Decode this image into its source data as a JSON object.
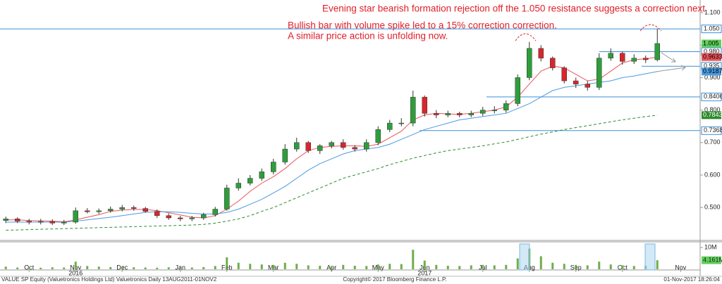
{
  "chart_data": {
    "type": "candlestick",
    "annotations": [
      "Evening star bearish formation rejection off the 1.050 resistance suggests a correction next",
      "Bullish bar with volume spike led to a 15% correction correction.",
      "A similar price action is unfolding now."
    ],
    "categories": [
      null,
      null,
      "Oct",
      null,
      null,
      null,
      "Nov",
      null,
      null,
      null,
      "Dec",
      null,
      null,
      null,
      null,
      "Jan",
      null,
      null,
      null,
      "Feb",
      null,
      null,
      null,
      "Mar",
      null,
      null,
      null,
      null,
      "Apr",
      null,
      null,
      null,
      "May",
      null,
      null,
      null,
      "Jun",
      null,
      null,
      null,
      null,
      "Jul",
      null,
      null,
      null,
      "Aug",
      null,
      null,
      null,
      "Sep",
      null,
      null,
      null,
      "Oct",
      null,
      null,
      null,
      null,
      "Nov",
      null
    ],
    "category_years": [
      null,
      null,
      null,
      null,
      null,
      null,
      "2016",
      null,
      null,
      null,
      null,
      null,
      null,
      null,
      null,
      null,
      null,
      null,
      null,
      null,
      null,
      null,
      null,
      null,
      null,
      null,
      null,
      null,
      null,
      null,
      null,
      null,
      null,
      null,
      null,
      null,
      "2017",
      null,
      null,
      null,
      null,
      null,
      null,
      null,
      null,
      null,
      null,
      null,
      null,
      null,
      null,
      null,
      null,
      null,
      null,
      null,
      null,
      null,
      null,
      null
    ],
    "open": [
      0.46,
      0.465,
      0.458,
      0.455,
      0.457,
      0.452,
      0.455,
      0.49,
      0.487,
      0.49,
      0.495,
      0.5,
      0.497,
      0.488,
      0.475,
      0.468,
      0.465,
      0.468,
      0.478,
      0.495,
      0.56,
      0.575,
      0.59,
      0.61,
      0.64,
      0.68,
      0.7,
      0.675,
      0.69,
      0.7,
      0.685,
      0.68,
      0.7,
      0.74,
      0.76,
      0.76,
      0.84,
      0.79,
      0.785,
      0.79,
      0.785,
      0.79,
      0.8,
      0.8,
      0.82,
      0.9,
      0.99,
      0.96,
      0.93,
      0.89,
      0.88,
      0.87,
      0.96,
      0.975,
      0.95,
      0.96,
      0.955,
      null,
      null,
      null
    ],
    "high": [
      0.472,
      0.47,
      0.465,
      0.465,
      0.464,
      0.462,
      0.5,
      0.498,
      0.497,
      0.503,
      0.508,
      0.506,
      0.502,
      0.494,
      0.482,
      0.474,
      0.474,
      0.484,
      0.502,
      0.57,
      0.59,
      0.6,
      0.62,
      0.65,
      0.695,
      0.715,
      0.705,
      0.695,
      0.705,
      0.71,
      0.692,
      0.71,
      0.75,
      0.77,
      0.775,
      0.86,
      0.845,
      0.8,
      0.798,
      0.795,
      0.798,
      0.81,
      0.812,
      0.83,
      0.91,
      1.01,
      1.0,
      0.965,
      0.935,
      0.9,
      0.89,
      0.975,
      0.99,
      0.98,
      0.972,
      0.968,
      1.05,
      null,
      null,
      null
    ],
    "low": [
      0.452,
      0.452,
      0.448,
      0.448,
      0.446,
      0.446,
      0.45,
      0.482,
      0.48,
      0.484,
      0.488,
      0.49,
      0.484,
      0.468,
      0.462,
      0.458,
      0.458,
      0.462,
      0.472,
      0.49,
      0.552,
      0.568,
      0.582,
      0.602,
      0.632,
      0.672,
      0.668,
      0.665,
      0.682,
      0.678,
      0.672,
      0.672,
      0.692,
      0.732,
      0.75,
      0.75,
      0.78,
      0.775,
      0.778,
      0.778,
      0.778,
      0.782,
      0.79,
      0.792,
      0.812,
      0.892,
      0.95,
      0.922,
      0.882,
      0.868,
      0.86,
      0.862,
      0.952,
      0.94,
      0.942,
      0.945,
      0.95,
      null,
      null,
      null
    ],
    "close": [
      0.465,
      0.458,
      0.455,
      0.457,
      0.452,
      0.455,
      0.49,
      0.487,
      0.49,
      0.495,
      0.5,
      0.497,
      0.488,
      0.475,
      0.468,
      0.465,
      0.468,
      0.478,
      0.495,
      0.56,
      0.575,
      0.59,
      0.61,
      0.64,
      0.68,
      0.7,
      0.675,
      0.69,
      0.7,
      0.685,
      0.68,
      0.7,
      0.74,
      0.76,
      0.76,
      0.84,
      0.79,
      0.785,
      0.79,
      0.785,
      0.79,
      0.8,
      0.8,
      0.82,
      0.9,
      0.99,
      0.96,
      0.93,
      0.89,
      0.88,
      0.87,
      0.96,
      0.975,
      0.95,
      0.96,
      0.955,
      1.005,
      null,
      null,
      null
    ],
    "up_color": "#2e9e3a",
    "down_color": "#d8262c",
    "last_color": "#5fd15a",
    "series": [
      {
        "color": "#e8545a",
        "dashed": false,
        "values": [
          0.462,
          0.462,
          0.46,
          0.459,
          0.458,
          0.456,
          0.462,
          0.47,
          0.478,
          0.488,
          0.492,
          0.494,
          0.494,
          0.49,
          0.484,
          0.477,
          0.47,
          0.468,
          0.475,
          0.495,
          0.52,
          0.55,
          0.575,
          0.595,
          0.62,
          0.65,
          0.675,
          0.685,
          0.688,
          0.69,
          0.69,
          0.688,
          0.695,
          0.715,
          0.735,
          0.77,
          0.785,
          0.79,
          0.788,
          0.787,
          0.79,
          0.795,
          0.8,
          0.81,
          0.84,
          0.88,
          0.92,
          0.935,
          0.93,
          0.91,
          0.89,
          0.895,
          0.92,
          0.945,
          0.955,
          0.958,
          0.9633,
          null,
          null,
          null
        ]
      },
      {
        "color": "#4a9be0",
        "dashed": false,
        "values": [
          0.455,
          0.455,
          0.455,
          0.455,
          0.455,
          0.455,
          0.458,
          0.462,
          0.466,
          0.47,
          0.475,
          0.48,
          0.485,
          0.487,
          0.487,
          0.485,
          0.482,
          0.48,
          0.48,
          0.485,
          0.495,
          0.51,
          0.525,
          0.545,
          0.565,
          0.59,
          0.615,
          0.635,
          0.65,
          0.665,
          0.675,
          0.68,
          0.685,
          0.695,
          0.71,
          0.725,
          0.74,
          0.75,
          0.76,
          0.77,
          0.775,
          0.78,
          0.785,
          0.79,
          0.805,
          0.82,
          0.84,
          0.86,
          0.87,
          0.875,
          0.88,
          0.885,
          0.89,
          0.9,
          0.905,
          0.912,
          0.9187,
          null,
          null,
          null
        ]
      },
      {
        "color": "#2f8a2f",
        "dashed": true,
        "values": [
          0.43,
          0.431,
          0.432,
          0.433,
          0.434,
          0.435,
          0.436,
          0.437,
          0.438,
          0.439,
          0.44,
          0.441,
          0.442,
          0.443,
          0.444,
          0.445,
          0.446,
          0.448,
          0.452,
          0.458,
          0.465,
          0.475,
          0.488,
          0.5,
          0.515,
          0.53,
          0.545,
          0.56,
          0.575,
          0.59,
          0.6,
          0.61,
          0.62,
          0.632,
          0.642,
          0.652,
          0.66,
          0.668,
          0.675,
          0.68,
          0.685,
          0.69,
          0.696,
          0.702,
          0.71,
          0.718,
          0.726,
          0.733,
          0.74,
          0.746,
          0.752,
          0.758,
          0.764,
          0.77,
          0.775,
          0.78,
          0.7843,
          null,
          null,
          null
        ]
      }
    ],
    "levels": [
      {
        "value": 1.05,
        "label": "1.050"
      },
      {
        "value": 0.98,
        "label": "0.980"
      },
      0.935,
      0.8406,
      0.7368
    ],
    "level_color": "#3a8fd6",
    "ylim": [
      0.403,
      1.139
    ],
    "yticks": [
      {
        "value": 0.5,
        "label": "0.500"
      },
      {
        "value": 0.6,
        "label": "0.600"
      },
      {
        "value": 0.7,
        "label": "0.700"
      },
      {
        "value": 0.8,
        "label": "0.800"
      },
      {
        "value": 0.9,
        "label": "0.900"
      },
      {
        "value": 1.0,
        "label": "1.000"
      },
      {
        "value": 1.1,
        "label": "1.100"
      }
    ],
    "volume": {
      "color": "#6fae4a",
      "label_color": "#5fd15a",
      "values": [
        1.2,
        0.8,
        1.0,
        0.7,
        0.9,
        0.8,
        3.5,
        1.5,
        1.2,
        1.0,
        1.1,
        0.9,
        0.8,
        0.7,
        0.9,
        0.6,
        0.8,
        1.0,
        1.5,
        5.5,
        3.0,
        2.5,
        2.2,
        2.0,
        3.0,
        2.5,
        1.8,
        1.6,
        1.5,
        2.0,
        1.6,
        1.5,
        2.2,
        2.5,
        2.4,
        9.0,
        4.0,
        2.0,
        1.6,
        1.5,
        1.8,
        2.0,
        1.8,
        2.0,
        5.0,
        9.5,
        6.0,
        3.0,
        2.5,
        2.0,
        1.8,
        3.5,
        2.2,
        1.8,
        1.5,
        1.6,
        4.161,
        null,
        null,
        null
      ],
      "value_labels": [
        null,
        null,
        null,
        null,
        null,
        null,
        null,
        null,
        null,
        null,
        null,
        null,
        null,
        null,
        null,
        null,
        null,
        null,
        null,
        null,
        null,
        null,
        null,
        null,
        null,
        null,
        null,
        null,
        null,
        null,
        null,
        null,
        null,
        null,
        null,
        null,
        null,
        null,
        null,
        null,
        null,
        null,
        null,
        null,
        null,
        null,
        null,
        null,
        null,
        null,
        null,
        null,
        null,
        null,
        null,
        null,
        "4.161M",
        null,
        null,
        null
      ],
      "ylim": [
        0,
        12
      ],
      "yticks": [
        {
          "value": 10,
          "label": "10M"
        }
      ]
    }
  },
  "footer": {
    "left": "VALUE SP Equity (Valuetronics Holdings Ltd) Valuetronics  Daily 13AUG2011-01NOV2",
    "center": "Copyright© 2017 Bloomberg Finance L.P.",
    "right": "01-Nov-2017 18:26:04"
  }
}
